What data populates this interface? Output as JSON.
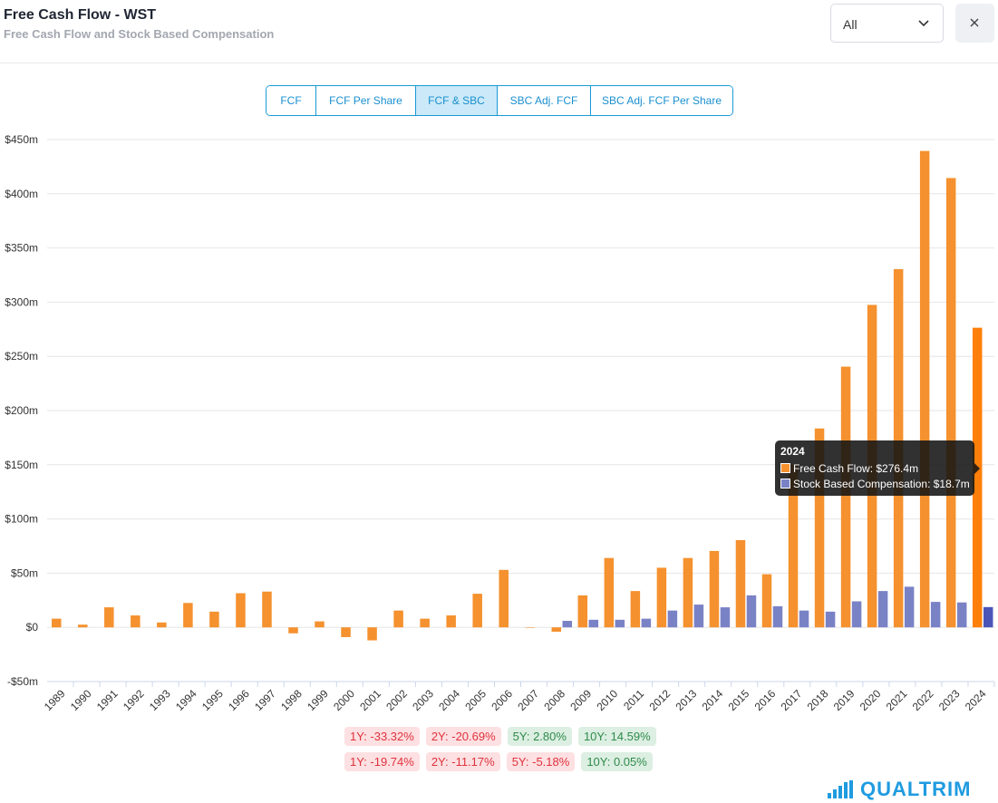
{
  "header": {
    "title": "Free Cash Flow - WST",
    "subtitle": "Free Cash Flow and Stock Based Compensation",
    "range_value": "All",
    "close_label": "×"
  },
  "tabs": [
    {
      "label": "FCF",
      "active": false
    },
    {
      "label": "FCF Per Share",
      "active": false
    },
    {
      "label": "FCF & SBC",
      "active": true
    },
    {
      "label": "SBC Adj. FCF",
      "active": false
    },
    {
      "label": "SBC Adj. FCF Per Share",
      "active": false
    }
  ],
  "chart_data": {
    "type": "bar",
    "title": "",
    "xlabel": "",
    "ylabel": "",
    "ylim": [
      -50,
      450
    ],
    "yticks": [
      -50,
      0,
      50,
      100,
      150,
      200,
      250,
      300,
      350,
      400,
      450
    ],
    "ytick_labels": [
      "-$50m",
      "$0",
      "$50m",
      "$100m",
      "$150m",
      "$200m",
      "$250m",
      "$300m",
      "$350m",
      "$400m",
      "$450m"
    ],
    "grid": true,
    "categories": [
      "1989",
      "1990",
      "1991",
      "1992",
      "1993",
      "1994",
      "1995",
      "1996",
      "1997",
      "1998",
      "1999",
      "2000",
      "2001",
      "2002",
      "2003",
      "2004",
      "2005",
      "2006",
      "2007",
      "2008",
      "2009",
      "2010",
      "2011",
      "2012",
      "2013",
      "2014",
      "2015",
      "2016",
      "2017",
      "2018",
      "2019",
      "2020",
      "2021",
      "2022",
      "2023",
      "2024"
    ],
    "series": [
      {
        "name": "Free Cash Flow",
        "color": "#f5912e",
        "highlight_color": "#ff7f0a",
        "values": [
          8,
          2.5,
          18.5,
          11,
          4.5,
          22.5,
          14.5,
          31.5,
          33,
          -5.5,
          5.5,
          -9,
          -12,
          15.5,
          8,
          11,
          31,
          53,
          0,
          -4,
          29.5,
          64,
          33.5,
          55,
          64,
          70.5,
          80.5,
          49,
          150,
          183.5,
          240.5,
          297.5,
          330.5,
          439.5,
          414.5,
          276.4
        ]
      },
      {
        "name": "Stock Based Compensation",
        "color": "#7a82c6",
        "highlight_color": "#4b55b8",
        "values": [
          0,
          0,
          0,
          0,
          0,
          0,
          0,
          0,
          0,
          0,
          0,
          0,
          0,
          0,
          0,
          0,
          0,
          0,
          0,
          6,
          7,
          7,
          8,
          15.5,
          21,
          18.5,
          29.5,
          19.5,
          15.5,
          14.5,
          24,
          33.5,
          37.5,
          23.5,
          23,
          18.7
        ]
      }
    ],
    "highlight_index": 35
  },
  "tooltip": {
    "title": "2024",
    "fcf_text": "Free Cash Flow: $276.4m",
    "sbc_text": "Stock Based Compensation: $18.7m",
    "fcf_color": "#f5912e",
    "sbc_color": "#7a82c6"
  },
  "growth_rows": [
    [
      "1Y: -33.32%",
      "2Y: -20.69%",
      "5Y: 2.80%",
      "10Y: 14.59%"
    ],
    [
      "1Y: -19.74%",
      "2Y: -11.17%",
      "5Y: -5.18%",
      "10Y: 0.05%"
    ]
  ],
  "logo": {
    "text": "QUALTRIM",
    "icon": "bar-chart-icon",
    "color": "#1f9be0"
  }
}
